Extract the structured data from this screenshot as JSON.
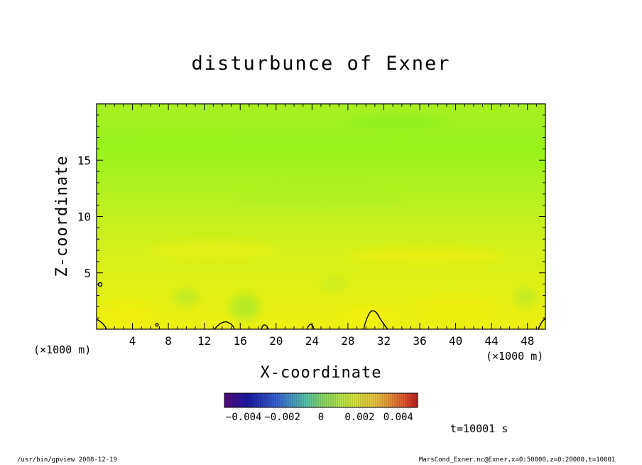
{
  "chart_data": {
    "type": "heatmap",
    "title": "disturbunce of Exner",
    "xlabel": "X-coordinate",
    "ylabel": "Z-coordinate",
    "x_unit": "(×1000 m)",
    "y_unit": "(×1000 m)",
    "xlim": [
      0,
      50
    ],
    "ylim": [
      0,
      20
    ],
    "x_ticks": [
      4,
      8,
      12,
      16,
      20,
      24,
      28,
      32,
      36,
      40,
      44,
      48
    ],
    "y_ticks": [
      5,
      10,
      15
    ],
    "colorbar": {
      "range": [
        -0.005,
        0.005
      ],
      "tick_values": [
        -0.004,
        -0.002,
        0,
        0.002,
        0.004
      ],
      "tick_labels": [
        "−0.004",
        "−0.002",
        "0",
        "0.002",
        "0.004"
      ]
    },
    "contour_levels": [
      0
    ],
    "field_description_bands": [
      {
        "z_range": [
          0,
          2
        ],
        "value": 0.0012
      },
      {
        "z_range": [
          2,
          5
        ],
        "value": 0.0011
      },
      {
        "z_range": [
          5,
          8
        ],
        "value": 0.0009
      },
      {
        "z_range": [
          8,
          12
        ],
        "value": 0.0007
      },
      {
        "z_range": [
          12,
          16
        ],
        "value": 0.0005
      },
      {
        "z_range": [
          16,
          20
        ],
        "value": 0.0004
      }
    ]
  },
  "annotations": {
    "time": "t=10001 s",
    "footer_left": "/usr/bin/gpview   2008-12-19",
    "footer_right": "MarsCond_Exner.nc@Exner,x=0:50000,z=0:20000,t=10001"
  }
}
